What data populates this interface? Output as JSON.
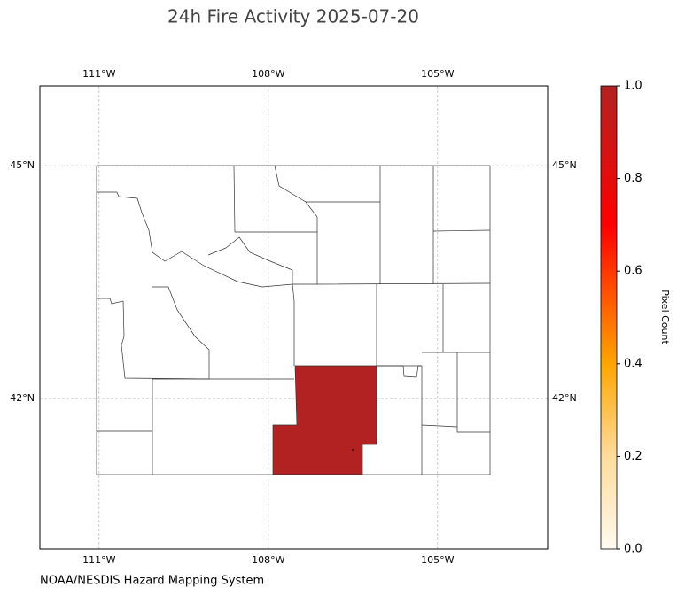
{
  "title": "24h Fire Activity 2025-07-20",
  "map": {
    "xlim": [
      -112.05,
      -103.05
    ],
    "ylim": [
      40.06,
      46.03
    ],
    "xticks": [
      {
        "value": -111,
        "label": "111°W"
      },
      {
        "value": -108,
        "label": "108°W"
      },
      {
        "value": -105,
        "label": "105°W"
      }
    ],
    "yticks": [
      {
        "value": 45,
        "label": "45°N"
      },
      {
        "value": 42,
        "label": "42°N"
      }
    ],
    "highlight_value": 1,
    "grid": true
  },
  "colorbar": {
    "label": "Pixel Count",
    "lim": [
      0,
      1
    ],
    "ticks": [
      {
        "value": 0,
        "label": "0.0"
      },
      0.2,
      0.4,
      0.6,
      0.8,
      {
        "value": 1,
        "label": "1.0"
      }
    ]
  },
  "credit": "NOAA/NESDIS Hazard Mapping System"
}
